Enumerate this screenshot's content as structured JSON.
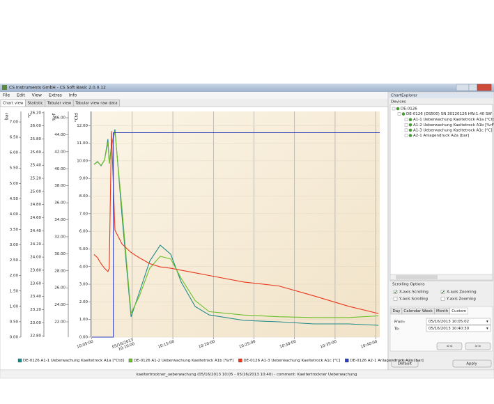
{
  "window": {
    "title": "CS Instruments GmbH - CS Soft Basic 2.0.0.12"
  },
  "menu": [
    "File",
    "Edit",
    "View",
    "Extras",
    "Info"
  ],
  "tabs": [
    "Chart view",
    "Statistic",
    "Tabular view",
    "Tabular view raw data"
  ],
  "chart_data": {
    "type": "line",
    "grid": true,
    "x": [
      "10:05:17",
      "10:05:43",
      "10:06:09",
      "10:06:35",
      "10:07:00",
      "10:07:10",
      "10:07:26",
      "10:07:52",
      "10:08:44",
      "10:09:51",
      "10:10:52",
      "10:12:09",
      "10:13:27",
      "10:14:44",
      "10:16:02",
      "10:17:45",
      "10:19:28",
      "10:23:46",
      "10:28:03",
      "10:32:21",
      "10:36:39",
      "10:40:20"
    ],
    "xlim": [
      "10:05:02",
      "10:40:30"
    ],
    "xticks": [
      "10:05:00",
      {
        "value": "10:10:00",
        "label": "05/16/2013 10:10:00"
      },
      "10:15:00",
      "10:20:00",
      "10:25:00",
      "10:30:00",
      "10:35:00",
      "10:40:00"
    ],
    "axes": [
      {
        "label": "bar",
        "ylim": [
          0,
          7.34
        ],
        "yticks": [
          {
            "value": 0,
            "label": "0.00"
          },
          {
            "value": 0.5,
            "label": "0.50"
          },
          {
            "value": 1,
            "label": "1.00"
          },
          {
            "value": 1.5,
            "label": "1.50"
          },
          {
            "value": 2,
            "label": "2.00"
          },
          {
            "value": 2.5,
            "label": "2.50"
          },
          {
            "value": 3,
            "label": "3.00"
          },
          {
            "value": 3.5,
            "label": "3.50"
          },
          {
            "value": 4,
            "label": "4.00"
          },
          {
            "value": 4.5,
            "label": "4.50"
          },
          {
            "value": 5,
            "label": "5.00"
          },
          {
            "value": 5.5,
            "label": "5.50"
          },
          {
            "value": 6,
            "label": "6.00"
          },
          {
            "value": 6.5,
            "label": "6.50"
          },
          {
            "value": 7,
            "label": "7.00"
          }
        ]
      },
      {
        "label": "°C",
        "ylim": [
          22.78,
          26.22
        ],
        "yticks": [
          {
            "value": 22.8,
            "label": "22.80"
          },
          {
            "value": 23,
            "label": "23.00"
          },
          {
            "value": 23.2,
            "label": "23.20"
          },
          {
            "value": 23.4,
            "label": "23.40"
          },
          {
            "value": 23.6,
            "label": "23.60"
          },
          {
            "value": 23.8,
            "label": "23.80"
          },
          {
            "value": 24,
            "label": "24.00"
          },
          {
            "value": 24.2,
            "label": "24.20"
          },
          {
            "value": 24.4,
            "label": "24.40"
          },
          {
            "value": 24.6,
            "label": "24.60"
          },
          {
            "value": 24.8,
            "label": "24.80"
          },
          {
            "value": 25,
            "label": "25.00"
          },
          {
            "value": 25.2,
            "label": "25.20"
          },
          {
            "value": 25.4,
            "label": "25.40"
          },
          {
            "value": 25.6,
            "label": "25.60"
          },
          {
            "value": 25.8,
            "label": "25.80"
          },
          {
            "value": 26,
            "label": "26.00"
          },
          {
            "value": 26.2,
            "label": "26.20"
          }
        ]
      },
      {
        "label": "%rF",
        "ylim": [
          20.2,
          46.74
        ],
        "yticks": [
          {
            "value": 22,
            "label": "22.00"
          },
          {
            "value": 24,
            "label": "24.00"
          },
          {
            "value": 26,
            "label": "26.00"
          },
          {
            "value": 28,
            "label": "28.00"
          },
          {
            "value": 30,
            "label": "30.00"
          },
          {
            "value": 32,
            "label": "32.00"
          },
          {
            "value": 34,
            "label": "34.00"
          },
          {
            "value": 36,
            "label": "36.00"
          },
          {
            "value": 38,
            "label": "38.00"
          },
          {
            "value": 40,
            "label": "40.00"
          },
          {
            "value": 42,
            "label": "42.00"
          },
          {
            "value": 44,
            "label": "44.00"
          },
          {
            "value": 46,
            "label": "46.00"
          }
        ]
      },
      {
        "label": "°Ctd",
        "ylim": [
          0,
          12.8
        ],
        "yticks": [
          {
            "value": 0,
            "label": "0.00"
          },
          {
            "value": 1,
            "label": "1.00"
          },
          {
            "value": 2,
            "label": "2.00"
          },
          {
            "value": 3,
            "label": "3.00"
          },
          {
            "value": 4,
            "label": "4.00"
          },
          {
            "value": 5,
            "label": "5.00"
          },
          {
            "value": 6,
            "label": "6.00"
          },
          {
            "value": 7,
            "label": "7.00"
          },
          {
            "value": 8,
            "label": "8.00"
          },
          {
            "value": 9,
            "label": "9.00"
          },
          {
            "value": 10,
            "label": "10.00"
          },
          {
            "value": 11,
            "label": "11.00"
          },
          {
            "value": 12,
            "label": "12.00"
          }
        ]
      }
    ],
    "series": [
      {
        "name": "DE-0126 A1-1 Ueberwachung Kaeltetrock A1a [°Ctd]",
        "color": "#1f8a8a",
        "axis": "°Ctd",
        "values": [
          9.8,
          9.96,
          9.72,
          10.04,
          11.23,
          9.84,
          10.83,
          11.78,
          6.88,
          1.15,
          2.53,
          4.31,
          5.22,
          4.7,
          3.12,
          1.74,
          1.26,
          0.95,
          0.87,
          0.75,
          0.75,
          0.67
        ]
      },
      {
        "name": "DE-0126 A1-2 Ueberwachung Kaeltetrock A1b [%rF]",
        "color": "#6cbf2a",
        "axis": "%rF",
        "values": [
          40.5,
          40.8,
          40.4,
          41.0,
          43.1,
          40.6,
          42.5,
          44.4,
          35.3,
          23.0,
          25.0,
          28.3,
          29.7,
          29.4,
          27.1,
          24.5,
          23.2,
          22.8,
          22.6,
          22.5,
          22.5,
          22.7
        ]
      },
      {
        "name": "DE-0126 A1-3 Ueberwachung Kaeltetrock A1c [°C]",
        "color": "#e8361c",
        "axis": "°C",
        "values": [
          24.04,
          23.99,
          23.9,
          23.83,
          23.78,
          23.83,
          25.92,
          24.41,
          24.2,
          24.07,
          23.99,
          23.9,
          23.85,
          23.83,
          23.8,
          23.76,
          23.72,
          23.62,
          23.56,
          23.41,
          23.25,
          23.14
        ]
      },
      {
        "name": "DE-0126 A2-1 Anlagendruck A2a [bar]",
        "color": "#2c3fb8",
        "axis": "bar",
        "x": [
          "10:05:02",
          "10:07:40",
          "10:07:40",
          "10:40:30"
        ],
        "values": [
          0,
          0,
          6.65,
          6.65
        ]
      }
    ]
  },
  "status": "kaeltertrockner_ueberwachung (05/16/2013 10:05 - 05/16/2013 10:40) - comment: Kaeltertrockner Ueberwachung",
  "explorer": {
    "title": "ChartExplorer",
    "devices_label": "Devices",
    "tree": [
      "DE-0126",
      "DE-0126 (DS500)  SN 30120126  HW:1.40  SW",
      "A1-1 Ueberwachung Kaeltetrock A1a [°Ctd]",
      "A1-2 Ueberwachung Kaeltetrock A1b [%rF]",
      "A1-3 Ueberwachung Kaeltetrock A1c [°C]",
      "A2-1 Anlagendruck A2a [bar]"
    ],
    "scrolling_title": "Scrolling Options",
    "options": [
      {
        "label": "X-axis Scrolling",
        "checked": true
      },
      {
        "label": "X-axis Zooming",
        "checked": true
      },
      {
        "label": "Y-axis Scrolling",
        "checked": false
      },
      {
        "label": "Y-axis Zooming",
        "checked": false
      }
    ],
    "range_tabs": [
      "Day",
      "Calendar Week",
      "Month",
      "Custom"
    ],
    "from_label": "From:",
    "from": "05/16/2013 10:05:02",
    "to_label": "To:",
    "to": "05/16/2013 10:40:30",
    "buttons": [
      "<<",
      ">>"
    ],
    "default": "Default",
    "apply": "Apply"
  }
}
